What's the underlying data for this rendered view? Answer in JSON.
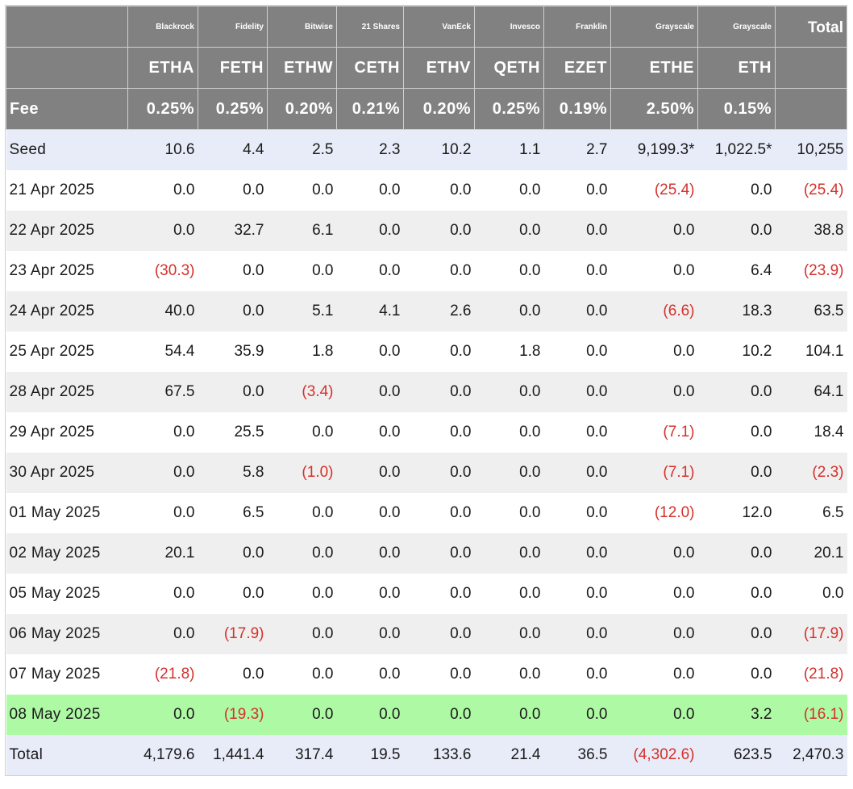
{
  "header": {
    "providers": [
      "Blackrock",
      "Fidelity",
      "Bitwise",
      "21 Shares",
      "VanEck",
      "Invesco",
      "Franklin",
      "Grayscale",
      "Grayscale"
    ],
    "total_label": "Total",
    "tickers": [
      "ETHA",
      "FETH",
      "ETHW",
      "CETH",
      "ETHV",
      "QETH",
      "EZET",
      "ETHE",
      "ETH"
    ],
    "fee_label": "Fee",
    "fees": [
      "0.25%",
      "0.25%",
      "0.20%",
      "0.21%",
      "0.20%",
      "0.25%",
      "0.19%",
      "2.50%",
      "0.15%"
    ]
  },
  "rows": [
    {
      "label": "Seed",
      "values": [
        "10.6",
        "4.4",
        "2.5",
        "2.3",
        "10.2",
        "1.1",
        "2.7",
        "9,199.3*",
        "1,022.5*",
        "10,255"
      ]
    },
    {
      "label": "21 Apr 2025",
      "values": [
        "0.0",
        "0.0",
        "0.0",
        "0.0",
        "0.0",
        "0.0",
        "0.0",
        "(25.4)",
        "0.0",
        "(25.4)"
      ]
    },
    {
      "label": "22 Apr 2025",
      "values": [
        "0.0",
        "32.7",
        "6.1",
        "0.0",
        "0.0",
        "0.0",
        "0.0",
        "0.0",
        "0.0",
        "38.8"
      ]
    },
    {
      "label": "23 Apr 2025",
      "values": [
        "(30.3)",
        "0.0",
        "0.0",
        "0.0",
        "0.0",
        "0.0",
        "0.0",
        "0.0",
        "6.4",
        "(23.9)"
      ]
    },
    {
      "label": "24 Apr 2025",
      "values": [
        "40.0",
        "0.0",
        "5.1",
        "4.1",
        "2.6",
        "0.0",
        "0.0",
        "(6.6)",
        "18.3",
        "63.5"
      ]
    },
    {
      "label": "25 Apr 2025",
      "values": [
        "54.4",
        "35.9",
        "1.8",
        "0.0",
        "0.0",
        "1.8",
        "0.0",
        "0.0",
        "10.2",
        "104.1"
      ]
    },
    {
      "label": "28 Apr 2025",
      "values": [
        "67.5",
        "0.0",
        "(3.4)",
        "0.0",
        "0.0",
        "0.0",
        "0.0",
        "0.0",
        "0.0",
        "64.1"
      ]
    },
    {
      "label": "29 Apr 2025",
      "values": [
        "0.0",
        "25.5",
        "0.0",
        "0.0",
        "0.0",
        "0.0",
        "0.0",
        "(7.1)",
        "0.0",
        "18.4"
      ]
    },
    {
      "label": "30 Apr 2025",
      "values": [
        "0.0",
        "5.8",
        "(1.0)",
        "0.0",
        "0.0",
        "0.0",
        "0.0",
        "(7.1)",
        "0.0",
        "(2.3)"
      ]
    },
    {
      "label": "01 May 2025",
      "values": [
        "0.0",
        "6.5",
        "0.0",
        "0.0",
        "0.0",
        "0.0",
        "0.0",
        "(12.0)",
        "12.0",
        "6.5"
      ]
    },
    {
      "label": "02 May 2025",
      "values": [
        "20.1",
        "0.0",
        "0.0",
        "0.0",
        "0.0",
        "0.0",
        "0.0",
        "0.0",
        "0.0",
        "20.1"
      ]
    },
    {
      "label": "05 May 2025",
      "values": [
        "0.0",
        "0.0",
        "0.0",
        "0.0",
        "0.0",
        "0.0",
        "0.0",
        "0.0",
        "0.0",
        "0.0"
      ]
    },
    {
      "label": "06 May 2025",
      "values": [
        "0.0",
        "(17.9)",
        "0.0",
        "0.0",
        "0.0",
        "0.0",
        "0.0",
        "0.0",
        "0.0",
        "(17.9)"
      ]
    },
    {
      "label": "07 May 2025",
      "values": [
        "(21.8)",
        "0.0",
        "0.0",
        "0.0",
        "0.0",
        "0.0",
        "0.0",
        "0.0",
        "0.0",
        "(21.8)"
      ]
    },
    {
      "label": "08 May 2025",
      "values": [
        "0.0",
        "(19.3)",
        "0.0",
        "0.0",
        "0.0",
        "0.0",
        "0.0",
        "0.0",
        "3.2",
        "(16.1)"
      ]
    },
    {
      "label": "Total",
      "values": [
        "4,179.6",
        "1,441.4",
        "317.4",
        "19.5",
        "133.6",
        "21.4",
        "36.5",
        "(4,302.6)",
        "623.5",
        "2,470.3"
      ]
    }
  ],
  "colors": {
    "header_bg": "#818181",
    "seed_total_bg": "#e8ecf8",
    "stripe_bg": "#efefef",
    "highlight_bg": "#aef9a3",
    "negative_text": "#d4312c"
  }
}
